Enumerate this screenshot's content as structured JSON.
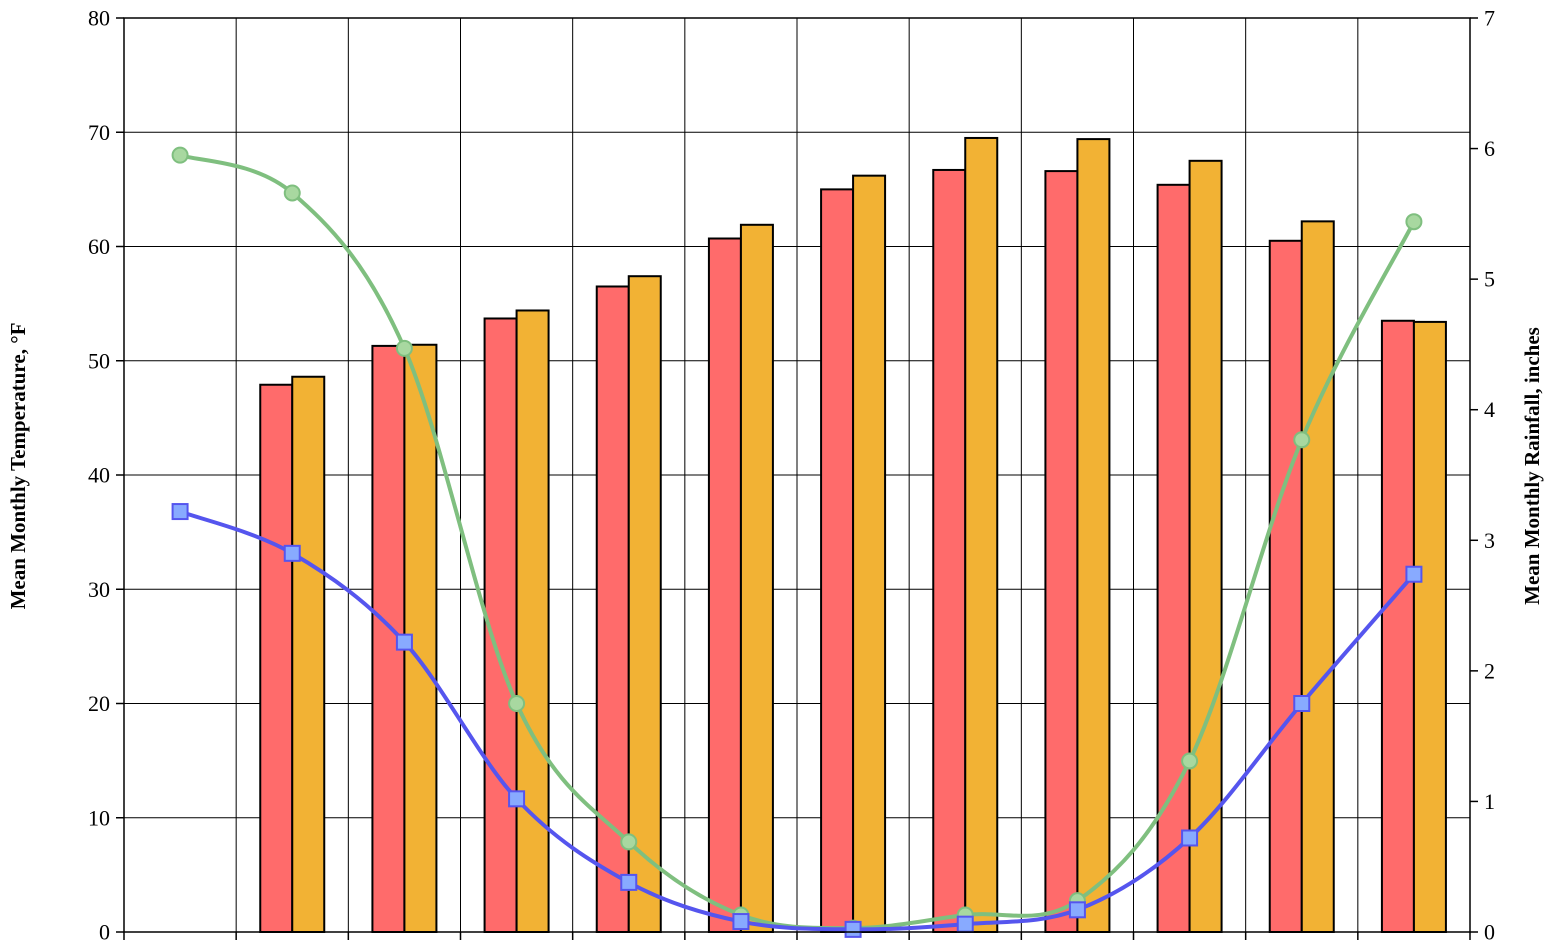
{
  "chart_data": {
    "type": "bar",
    "title": "",
    "ylabel": "Mean Monthly Temperature, °F",
    "y2label": "Mean Monthly Rainfall, inches",
    "ylim": [
      0,
      80
    ],
    "y2lim": [
      0,
      7
    ],
    "yticks": [
      0,
      10,
      20,
      30,
      40,
      50,
      60,
      70,
      80
    ],
    "y2ticks": [
      0,
      1,
      2,
      3,
      4,
      5,
      6,
      7
    ],
    "categories": [
      "",
      "",
      "",
      "",
      "",
      "",
      "",
      "",
      "",
      "",
      "",
      ""
    ],
    "grid": true,
    "bar_series": [
      {
        "values": [
          null,
          47.9,
          51.3,
          53.7,
          56.5,
          60.7,
          65.0,
          66.7,
          66.6,
          65.4,
          60.5,
          53.5
        ],
        "color": "#ff6b6b"
      },
      {
        "values": [
          null,
          48.6,
          51.4,
          54.4,
          57.4,
          61.9,
          66.2,
          69.5,
          69.4,
          67.5,
          62.2,
          53.4
        ],
        "color": "#f2b234"
      }
    ],
    "line_series": [
      {
        "axis": "right",
        "marker": "circle",
        "color": "#7fbf7f",
        "marker_fill": "#a8d8a0",
        "values": [
          5.95,
          5.66,
          4.47,
          1.75,
          0.69,
          0.13,
          0.03,
          0.13,
          0.24,
          1.31,
          3.77,
          5.44
        ]
      },
      {
        "axis": "right",
        "marker": "square",
        "color": "#5555ee",
        "marker_fill": "#88aaff",
        "values": [
          3.22,
          2.9,
          2.22,
          1.02,
          0.38,
          0.08,
          0.02,
          0.06,
          0.17,
          0.72,
          1.75,
          2.74
        ]
      }
    ]
  }
}
